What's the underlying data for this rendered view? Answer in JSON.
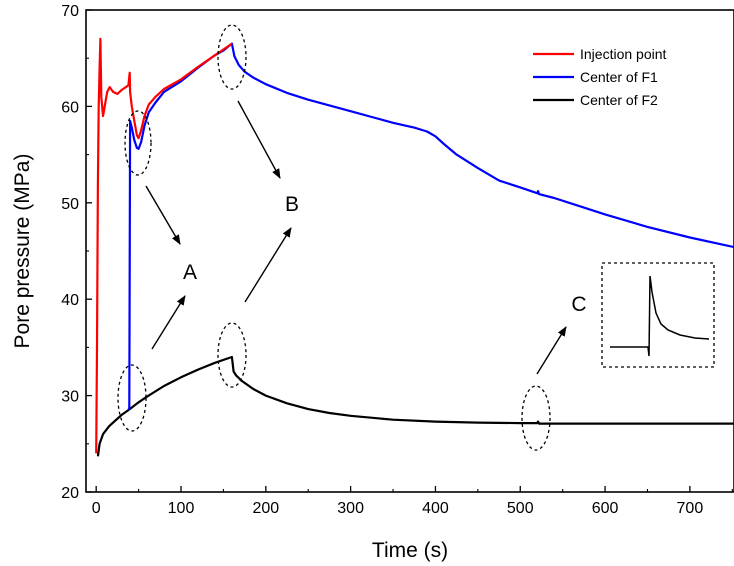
{
  "chart_data": {
    "type": "line",
    "xlabel": "Time (s)",
    "ylabel": "Pore pressure (MPa)",
    "xlim": [
      -12,
      752
    ],
    "ylim": [
      20,
      70
    ],
    "x_ticks": [
      0,
      100,
      200,
      300,
      400,
      500,
      600,
      700
    ],
    "y_ticks": [
      20,
      30,
      40,
      50,
      60,
      70
    ],
    "grid": false,
    "legend_position": "top-right",
    "series": [
      {
        "name": "Injection point",
        "color": "#ff0000",
        "points": [
          [
            0,
            24
          ],
          [
            1,
            35
          ],
          [
            2,
            52
          ],
          [
            3,
            60
          ],
          [
            4,
            64
          ],
          [
            5,
            67
          ],
          [
            6,
            61
          ],
          [
            8,
            59
          ],
          [
            10,
            60
          ],
          [
            13,
            61.5
          ],
          [
            16,
            62
          ],
          [
            20,
            61.5
          ],
          [
            25,
            61.3
          ],
          [
            30,
            61.7
          ],
          [
            35,
            62
          ],
          [
            38,
            62.2
          ],
          [
            39.5,
            63.5
          ],
          [
            40,
            61.5
          ],
          [
            42,
            60
          ],
          [
            45,
            58.5
          ],
          [
            48,
            57
          ],
          [
            50,
            56.7
          ],
          [
            53,
            57.5
          ],
          [
            57,
            59
          ],
          [
            62,
            60.2
          ],
          [
            70,
            61
          ],
          [
            80,
            61.8
          ],
          [
            100,
            62.8
          ],
          [
            120,
            64.1
          ],
          [
            140,
            65.3
          ],
          [
            150,
            65.9
          ],
          [
            160,
            66.5
          ]
        ]
      },
      {
        "name": "Center of F1",
        "color": "#0000ff",
        "points": [
          [
            38,
            28.5
          ],
          [
            39,
            28.7
          ],
          [
            40,
            58.5
          ],
          [
            42,
            57.8
          ],
          [
            45,
            56.5
          ],
          [
            48,
            55.7
          ],
          [
            50,
            55.6
          ],
          [
            53,
            56.3
          ],
          [
            57,
            58
          ],
          [
            62,
            59.4
          ],
          [
            70,
            60.4
          ],
          [
            80,
            61.5
          ],
          [
            100,
            62.6
          ],
          [
            120,
            64
          ],
          [
            140,
            65.3
          ],
          [
            150,
            65.8
          ],
          [
            160,
            66.5
          ],
          [
            163,
            65.2
          ],
          [
            168,
            64.3
          ],
          [
            175,
            63.6
          ],
          [
            185,
            63
          ],
          [
            200,
            62.3
          ],
          [
            225,
            61.4
          ],
          [
            250,
            60.7
          ],
          [
            275,
            60.1
          ],
          [
            300,
            59.5
          ],
          [
            325,
            58.9
          ],
          [
            350,
            58.3
          ],
          [
            375,
            57.8
          ],
          [
            390,
            57.4
          ],
          [
            400,
            56.9
          ],
          [
            410,
            56.1
          ],
          [
            425,
            55
          ],
          [
            450,
            53.6
          ],
          [
            475,
            52.3
          ],
          [
            500,
            51.6
          ],
          [
            520,
            51
          ],
          [
            521,
            51.2
          ],
          [
            522,
            50.9
          ],
          [
            540,
            50.5
          ],
          [
            575,
            49.5
          ],
          [
            600,
            48.8
          ],
          [
            650,
            47.5
          ],
          [
            700,
            46.4
          ],
          [
            752,
            45.4
          ]
        ]
      },
      {
        "name": "Center of F2",
        "color": "#000000",
        "points": [
          [
            2,
            23.7
          ],
          [
            4,
            25
          ],
          [
            8,
            26
          ],
          [
            15,
            26.8
          ],
          [
            20,
            27.2
          ],
          [
            30,
            28
          ],
          [
            38,
            28.5
          ],
          [
            50,
            29.3
          ],
          [
            60,
            29.9
          ],
          [
            80,
            31
          ],
          [
            100,
            31.9
          ],
          [
            120,
            32.7
          ],
          [
            140,
            33.4
          ],
          [
            160,
            34
          ],
          [
            162,
            32.5
          ],
          [
            165,
            32.1
          ],
          [
            172,
            31.5
          ],
          [
            185,
            30.7
          ],
          [
            200,
            30
          ],
          [
            225,
            29.2
          ],
          [
            250,
            28.6
          ],
          [
            275,
            28.2
          ],
          [
            300,
            27.9
          ],
          [
            350,
            27.5
          ],
          [
            400,
            27.3
          ],
          [
            450,
            27.2
          ],
          [
            500,
            27.15
          ],
          [
            520,
            27.15
          ],
          [
            521,
            27.3
          ],
          [
            522,
            27.1
          ],
          [
            550,
            27.1
          ],
          [
            600,
            27.1
          ],
          [
            650,
            27.1
          ],
          [
            700,
            27.1
          ],
          [
            752,
            27.1
          ]
        ]
      }
    ],
    "annotations": [
      {
        "label": "A",
        "x": 107,
        "y": 43
      },
      {
        "label": "B",
        "x": 233,
        "y": 50
      },
      {
        "label": "C",
        "x": 588,
        "y": 39.7
      }
    ]
  }
}
